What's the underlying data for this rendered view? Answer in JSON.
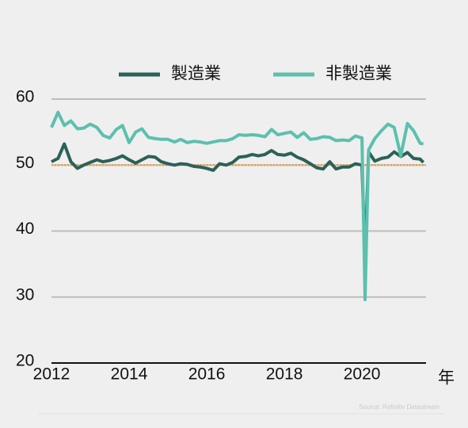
{
  "chart_data": {
    "type": "line",
    "x_unit": "年",
    "source": "Source: Refinitiv Datastream",
    "x": [
      2012.0,
      2012.17,
      2012.33,
      2012.5,
      2012.67,
      2012.83,
      2013.0,
      2013.17,
      2013.33,
      2013.5,
      2013.67,
      2013.83,
      2014.0,
      2014.17,
      2014.33,
      2014.5,
      2014.67,
      2014.83,
      2015.0,
      2015.17,
      2015.33,
      2015.5,
      2015.67,
      2015.83,
      2016.0,
      2016.17,
      2016.33,
      2016.5,
      2016.67,
      2016.83,
      2017.0,
      2017.17,
      2017.33,
      2017.5,
      2017.67,
      2017.83,
      2018.0,
      2018.17,
      2018.33,
      2018.5,
      2018.67,
      2018.83,
      2019.0,
      2019.17,
      2019.33,
      2019.5,
      2019.67,
      2019.83,
      2020.0,
      2020.08,
      2020.17,
      2020.33,
      2020.5,
      2020.67,
      2020.83,
      2021.0,
      2021.17,
      2021.33,
      2021.5,
      2021.58
    ],
    "series": [
      {
        "name": "製造業",
        "color": "#2b6158",
        "values": [
          50.5,
          51,
          53.2,
          50.5,
          49.5,
          50,
          50.4,
          50.8,
          50.5,
          50.7,
          51,
          51.4,
          50.8,
          50.3,
          50.8,
          51.3,
          51.2,
          50.5,
          50.2,
          50,
          50.2,
          50.1,
          49.8,
          49.7,
          49.5,
          49.2,
          50.2,
          50,
          50.4,
          51.2,
          51.3,
          51.6,
          51.4,
          51.6,
          52.2,
          51.6,
          51.5,
          51.8,
          51.2,
          50.8,
          50.2,
          49.6,
          49.4,
          50.5,
          49.4,
          49.7,
          49.7,
          50.2,
          50,
          35.7,
          52,
          50.6,
          51,
          51.2,
          52,
          51.3,
          51.9,
          51,
          50.9,
          50.4
        ]
      },
      {
        "name": "非製造業",
        "color": "#5cc0ae",
        "values": [
          55.7,
          58,
          56,
          56.7,
          55.5,
          55.6,
          56.2,
          55.7,
          54.5,
          54.1,
          55.4,
          56,
          53.4,
          55,
          55.5,
          54.2,
          54,
          53.9,
          53.9,
          53.5,
          53.9,
          53.4,
          53.6,
          53.5,
          53.3,
          53.5,
          53.7,
          53.7,
          54,
          54.6,
          54.5,
          54.6,
          54.5,
          54.3,
          55.4,
          54.6,
          54.8,
          55,
          54.2,
          54.9,
          53.9,
          54,
          54.3,
          54.2,
          53.7,
          53.8,
          53.7,
          54.4,
          54.1,
          29.6,
          52.3,
          54,
          55.2,
          56.2,
          55.7,
          51.4,
          56.3,
          55.2,
          53.3,
          53.2
        ]
      }
    ],
    "reference_line": {
      "value": 50,
      "color": "#e8a24a"
    },
    "xlim": [
      2012,
      2021.65
    ],
    "xticks": [
      2012,
      2014,
      2016,
      2018,
      2020
    ],
    "ylim": [
      20,
      60
    ],
    "yticks": [
      20,
      30,
      40,
      50,
      60
    ],
    "grid": true,
    "legend": "top"
  }
}
